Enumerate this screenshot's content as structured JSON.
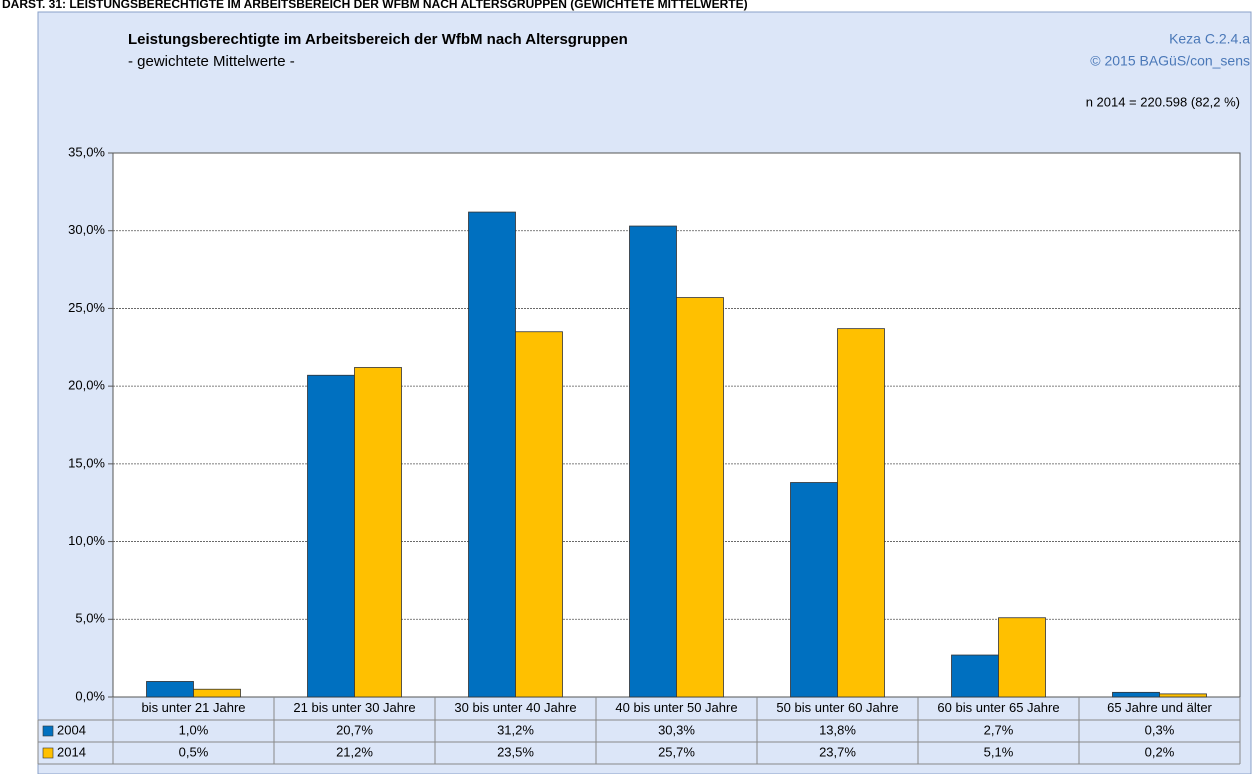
{
  "chart_data": {
    "type": "bar",
    "caption": "DARST. 31: LEISTUNGSBERECHTIGTE IM ARBEITSBEREICH DER WFBM NACH ALTERSGRUPPEN (GEWICHTETE MITTELWERTE)",
    "title": "Leistungsberechtigte im Arbeitsbereich der WfbM nach Altersgruppen",
    "subtitle": "- gewichtete Mittelwerte -",
    "annotations": [
      "Keza C.2.4.a",
      "© 2015 BAGüS/con_sens",
      "n 2014 = 220.598 (82,2 %)"
    ],
    "categories": [
      "bis unter 21 Jahre",
      "21 bis unter 30 Jahre",
      "30 bis unter 40 Jahre",
      "40 bis unter 50 Jahre",
      "50 bis unter 60 Jahre",
      "60 bis unter 65 Jahre",
      "65 Jahre und älter"
    ],
    "series": [
      {
        "name": "2004",
        "color": "#0070c0",
        "values": [
          1.0,
          20.7,
          31.2,
          30.3,
          13.8,
          2.7,
          0.3
        ],
        "value_labels": [
          "1,0%",
          "20,7%",
          "31,2%",
          "30,3%",
          "13,8%",
          "2,7%",
          "0,3%"
        ]
      },
      {
        "name": "2014",
        "color": "#ffc000",
        "values": [
          0.5,
          21.2,
          23.5,
          25.7,
          23.7,
          5.1,
          0.2
        ],
        "value_labels": [
          "0,5%",
          "21,2%",
          "23,5%",
          "25,7%",
          "23,7%",
          "5,1%",
          "0,2%"
        ]
      }
    ],
    "ylim": [
      0,
      35
    ],
    "yticks": [
      {
        "value": 0,
        "label": "0,0%"
      },
      {
        "value": 5,
        "label": "5,0%"
      },
      {
        "value": 10,
        "label": "10,0%"
      },
      {
        "value": 15,
        "label": "15,0%"
      },
      {
        "value": 20,
        "label": "20,0%"
      },
      {
        "value": 25,
        "label": "25,0%"
      },
      {
        "value": 30,
        "label": "30,0%"
      },
      {
        "value": 35,
        "label": "35,0%"
      }
    ],
    "grid": true
  }
}
